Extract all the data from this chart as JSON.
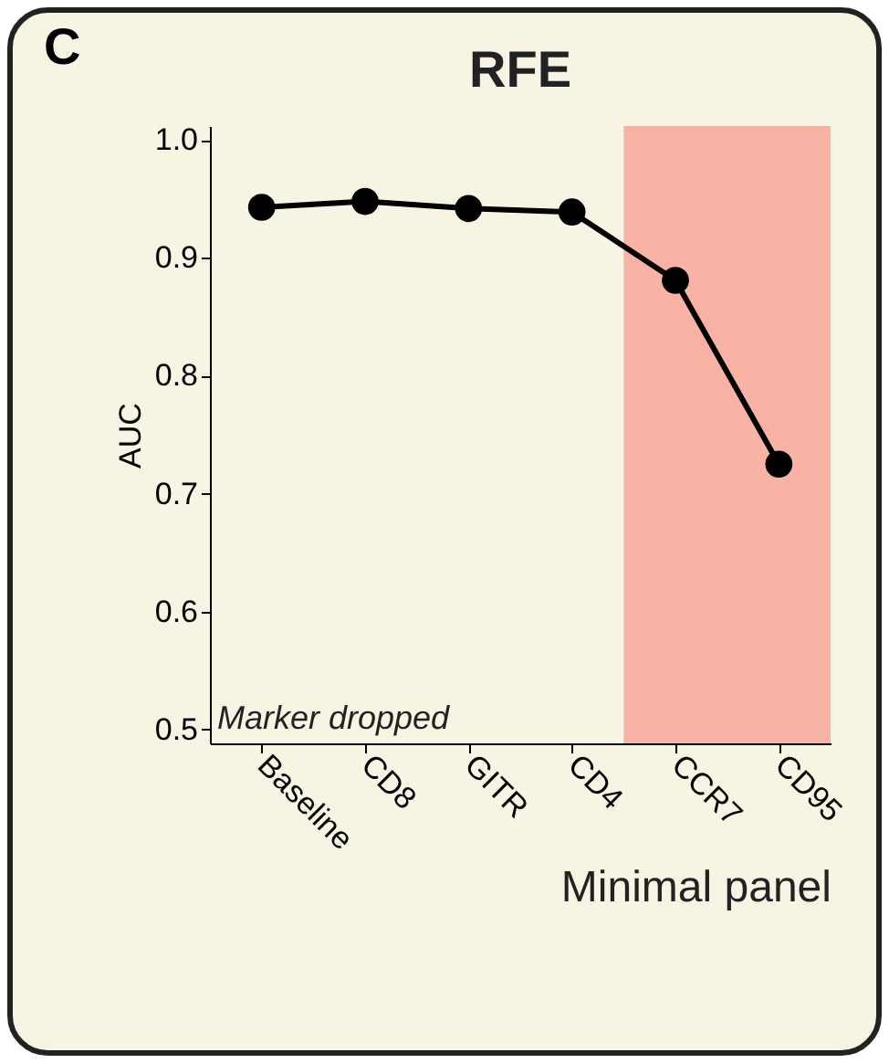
{
  "chart_data": {
    "type": "line",
    "title": "RFE",
    "xlabel": "Minimal panel",
    "ylabel": "AUC",
    "annotations": [
      "C",
      "Marker dropped"
    ],
    "categories": [
      "Baseline",
      "CD8",
      "GITR",
      "CD4",
      "CCR7",
      "CD95"
    ],
    "series": [
      {
        "color": "#000000",
        "values": [
          0.943,
          0.948,
          0.942,
          0.939,
          0.881,
          0.725
        ]
      }
    ],
    "ylim": [
      0.488,
      1.012
    ],
    "yticks": [
      {
        "value": 0.5,
        "label": "0.5"
      },
      {
        "value": 0.6,
        "label": "0.6"
      },
      {
        "value": 0.7,
        "label": "0.7"
      },
      {
        "value": 0.8,
        "label": "0.8"
      },
      {
        "value": 0.9,
        "label": "0.9"
      },
      {
        "value": 1.0,
        "label": "1.0"
      }
    ],
    "bands": [
      {
        "axis": "x",
        "from": "CCR7",
        "to": "CD95",
        "color": "#f8b3a4"
      }
    ],
    "grid": false,
    "marker": "circle",
    "line_style": "solid"
  }
}
